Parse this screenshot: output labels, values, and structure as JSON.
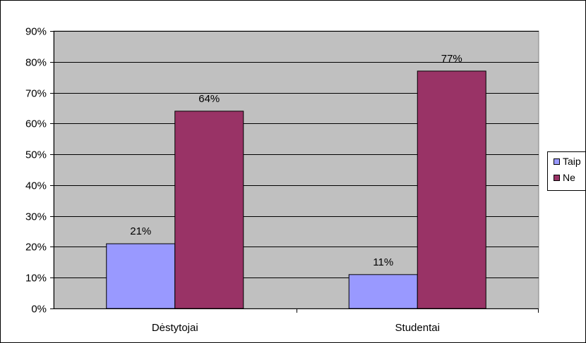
{
  "chart_data": {
    "type": "bar",
    "title": "",
    "xlabel": "",
    "ylabel": "",
    "categories": [
      "Dėstytojai",
      "Studentai"
    ],
    "series": [
      {
        "name": "Taip",
        "color": "#9999ff",
        "values": [
          21,
          11
        ],
        "labels": [
          "21%",
          "11%"
        ]
      },
      {
        "name": "Ne",
        "color": "#993366",
        "values": [
          64,
          77
        ],
        "labels": [
          "64%",
          "77%"
        ]
      }
    ],
    "ylim": [
      0,
      90
    ],
    "yticks": [
      0,
      10,
      20,
      30,
      40,
      50,
      60,
      70,
      80,
      90
    ],
    "ytick_labels": [
      "0%",
      "10%",
      "20%",
      "30%",
      "40%",
      "50%",
      "60%",
      "70%",
      "80%",
      "90%"
    ],
    "plot_background": "#c0c0c0",
    "grid": true,
    "legend": {
      "position": "right",
      "entries": [
        "Taip",
        "Ne"
      ]
    }
  }
}
